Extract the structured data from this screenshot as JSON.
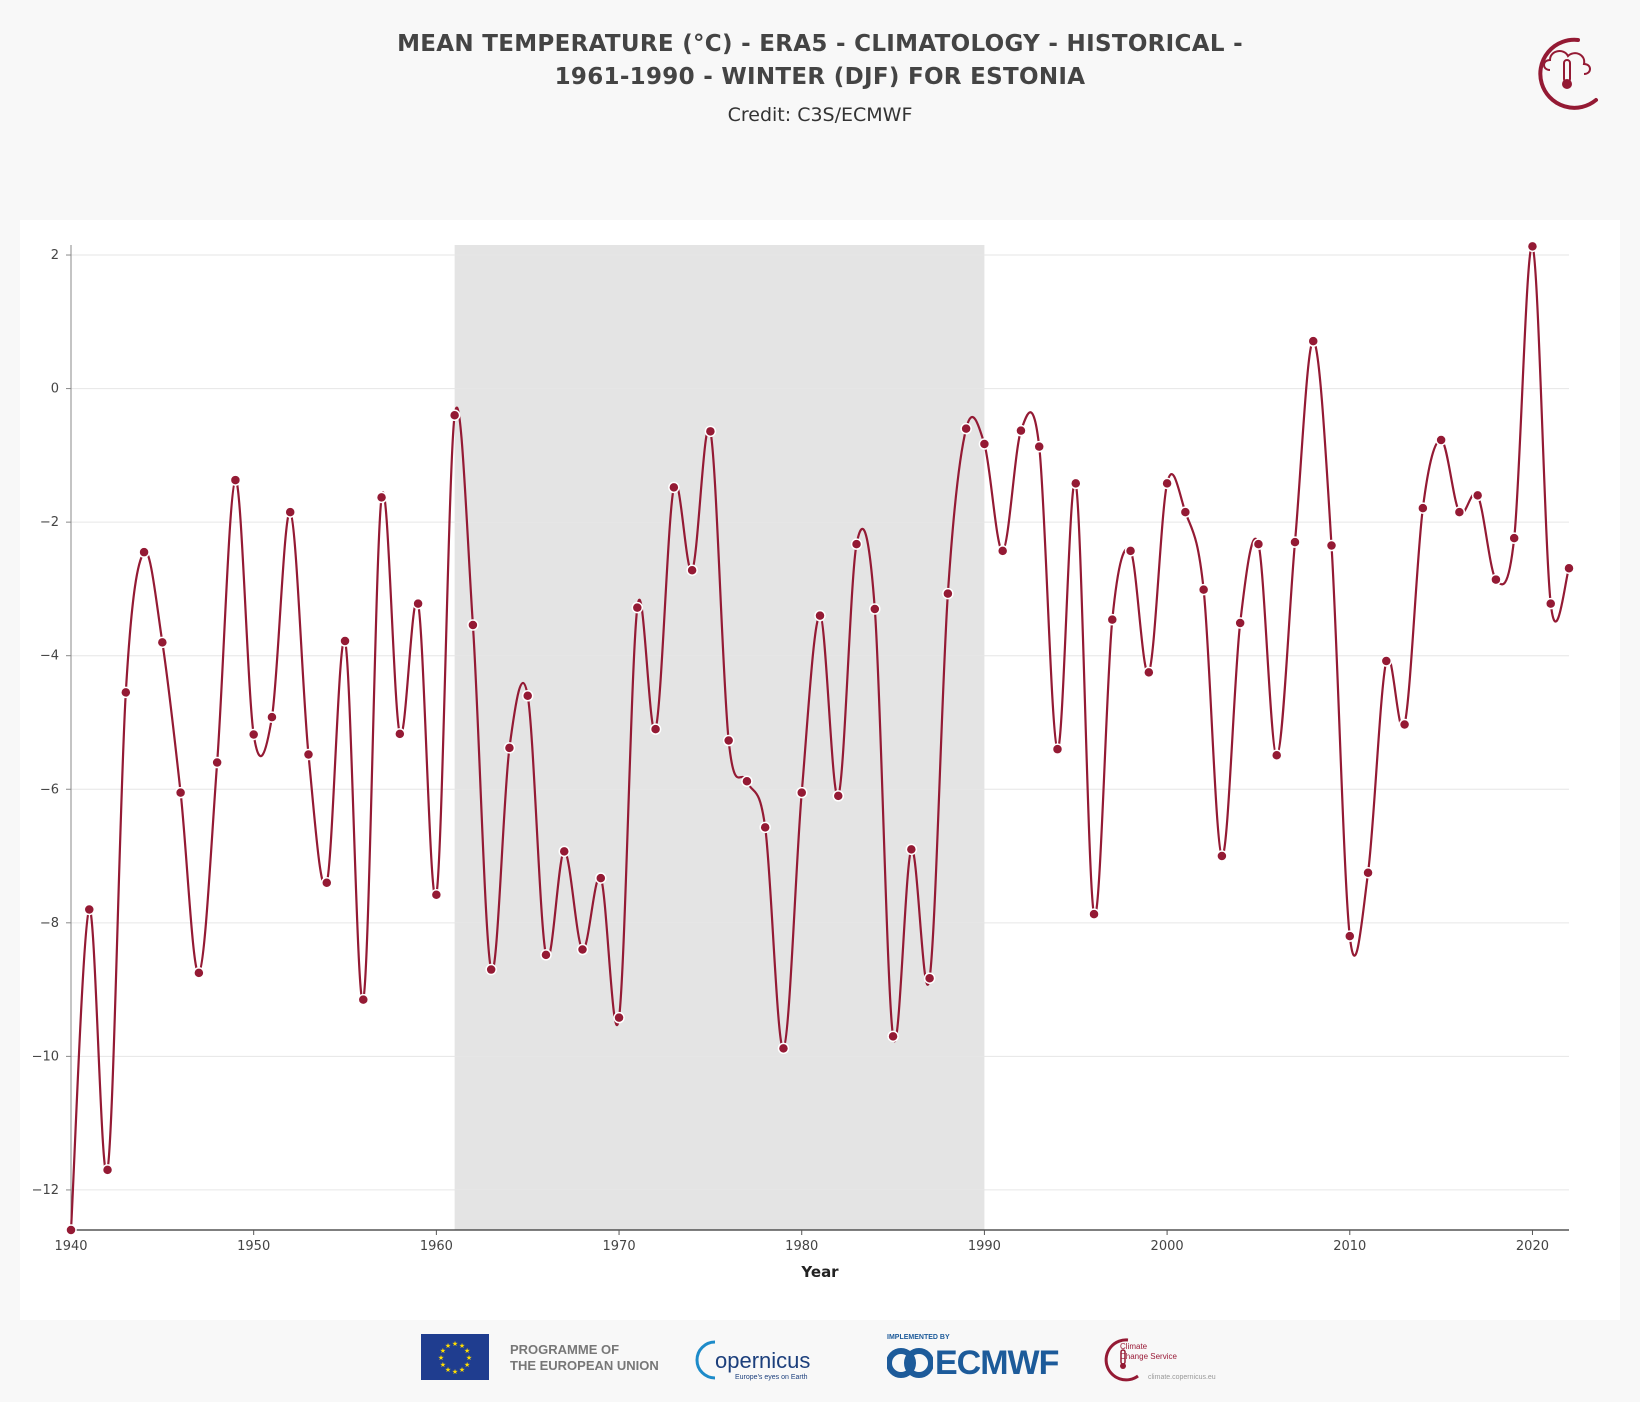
{
  "header": {
    "title_line1": "MEAN TEMPERATURE (°C) - ERA5 - CLIMATOLOGY - HISTORICAL -",
    "title_line2": "1961-1990 - WINTER (DJF) FOR ESTONIA",
    "credit": "Credit: C3S/ECMWF"
  },
  "footer": {
    "eu_line1": "PROGRAMME OF",
    "eu_line2": "THE EUROPEAN UNION",
    "copernicus": "opernicus",
    "copernicus_tagline": "Europe's eyes on Earth",
    "ecmwf_small": "IMPLEMENTED BY",
    "ecmwf": "ECMWF",
    "c3s_line1": "Climate",
    "c3s_line2": "Change Service",
    "c3s_url": "climate.copernicus.eu"
  },
  "colors": {
    "series": "#941a34",
    "reference_band": "#e4e4e4",
    "grid": "#e6e6e6"
  },
  "icons": [
    "c3s-thermometer-logo",
    "eu-flag-icon",
    "copernicus-logo",
    "ecmwf-logo",
    "c3s-logo"
  ],
  "chart_data": {
    "type": "line",
    "title": "MEAN TEMPERATURE (°C) - ERA5 - CLIMATOLOGY - HISTORICAL - 1961-1990 - WINTER (DJF) FOR ESTONIA",
    "xlabel": "Year",
    "ylabel": "",
    "xlim": [
      1940,
      2022
    ],
    "ylim": [
      -12.6,
      2.15
    ],
    "xticks": [
      1940,
      1950,
      1960,
      1970,
      1980,
      1990,
      2000,
      2010,
      2020
    ],
    "yticks": [
      2,
      0,
      -2,
      -4,
      -6,
      -8,
      -10,
      -12
    ],
    "grid": "horizontal",
    "reference_period": [
      1961,
      1990
    ],
    "x": [
      1940,
      1941,
      1942,
      1943,
      1944,
      1945,
      1946,
      1947,
      1948,
      1949,
      1950,
      1951,
      1952,
      1953,
      1954,
      1955,
      1956,
      1957,
      1958,
      1959,
      1960,
      1961,
      1962,
      1963,
      1964,
      1965,
      1966,
      1967,
      1968,
      1969,
      1970,
      1971,
      1972,
      1973,
      1974,
      1975,
      1976,
      1977,
      1978,
      1979,
      1980,
      1981,
      1982,
      1983,
      1984,
      1985,
      1986,
      1987,
      1988,
      1989,
      1990,
      1991,
      1992,
      1993,
      1994,
      1995,
      1996,
      1997,
      1998,
      1999,
      2000,
      2001,
      2002,
      2003,
      2004,
      2005,
      2006,
      2007,
      2008,
      2009,
      2010,
      2011,
      2012,
      2013,
      2014,
      2015,
      2016,
      2017,
      2018,
      2019,
      2020,
      2021,
      2022
    ],
    "series": [
      {
        "values": [
          -12.6,
          -7.8,
          -11.7,
          -4.55,
          -2.45,
          -3.8,
          -6.05,
          -8.75,
          -5.6,
          -1.37,
          -5.18,
          -4.92,
          -1.85,
          -5.48,
          -7.4,
          -3.78,
          -9.15,
          -1.63,
          -5.17,
          -3.22,
          -7.58,
          -0.4,
          -3.54,
          -8.7,
          -5.38,
          -4.6,
          -8.48,
          -6.93,
          -8.4,
          -7.33,
          -9.42,
          -3.28,
          -5.1,
          -1.48,
          -2.72,
          -0.64,
          -5.27,
          -5.88,
          -6.57,
          -9.88,
          -6.05,
          -3.4,
          -6.1,
          -2.33,
          -3.3,
          -9.7,
          -6.9,
          -8.83,
          -3.07,
          -0.6,
          -0.83,
          -2.43,
          -0.63,
          -0.87,
          -5.4,
          -1.42,
          -7.87,
          -3.46,
          -2.43,
          -4.25,
          -1.42,
          -1.85,
          -3.01,
          -7.0,
          -3.51,
          -2.33,
          -5.49,
          -2.3,
          0.71,
          -2.35,
          -8.2,
          -7.25,
          -4.08,
          -5.03,
          -1.79,
          -0.77,
          -1.85,
          -1.6,
          -2.86,
          -2.24,
          2.13,
          -3.22,
          -2.69
        ]
      }
    ]
  }
}
